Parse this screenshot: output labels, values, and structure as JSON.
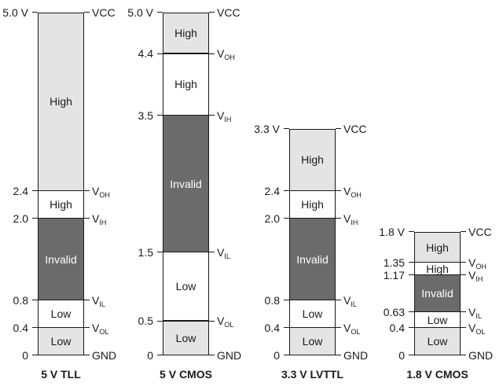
{
  "columns": [
    {
      "title": "5 V TLL",
      "levels": [
        {
          "label": "5.0 V",
          "value": 5.0
        },
        {
          "label": "2.4",
          "value": 2.4
        },
        {
          "label": "2.0",
          "value": 2.0
        },
        {
          "label": "0.8",
          "value": 0.8
        },
        {
          "label": "0.4",
          "value": 0.4
        },
        {
          "label": "0",
          "value": 0
        }
      ],
      "signals": [
        {
          "name": "VCC",
          "sub": "",
          "value": 5.0
        },
        {
          "name": "V",
          "sub": "OH",
          "value": 2.4
        },
        {
          "name": "V",
          "sub": "IH",
          "value": 2.0
        },
        {
          "name": "V",
          "sub": "IL",
          "value": 0.8
        },
        {
          "name": "V",
          "sub": "OL",
          "value": 0.4
        },
        {
          "name": "GND",
          "sub": "",
          "value": 0
        }
      ],
      "zones": [
        {
          "label": "High",
          "from": 2.4,
          "to": 5.0,
          "shade": "light"
        },
        {
          "label": "High",
          "from": 2.0,
          "to": 2.4,
          "shade": "white"
        },
        {
          "label": "Invalid",
          "from": 0.8,
          "to": 2.0,
          "shade": "dark"
        },
        {
          "label": "Low",
          "from": 0.4,
          "to": 0.8,
          "shade": "white"
        },
        {
          "label": "Low",
          "from": 0,
          "to": 0.4,
          "shade": "light"
        }
      ]
    },
    {
      "title": "5 V CMOS",
      "levels": [
        {
          "label": "5.0 V",
          "value": 5.0
        },
        {
          "label": "4.4",
          "value": 4.4
        },
        {
          "label": "3.5",
          "value": 3.5
        },
        {
          "label": "1.5",
          "value": 1.5
        },
        {
          "label": "0.5",
          "value": 0.5
        },
        {
          "label": "0",
          "value": 0
        }
      ],
      "signals": [
        {
          "name": "VCC",
          "sub": "",
          "value": 5.0
        },
        {
          "name": "V",
          "sub": "OH",
          "value": 4.4
        },
        {
          "name": "V",
          "sub": "IH",
          "value": 3.5
        },
        {
          "name": "V",
          "sub": "IL",
          "value": 1.5
        },
        {
          "name": "V",
          "sub": "OL",
          "value": 0.5
        },
        {
          "name": "GND",
          "sub": "",
          "value": 0
        }
      ],
      "zones": [
        {
          "label": "High",
          "from": 4.4,
          "to": 5.0,
          "shade": "light"
        },
        {
          "label": "High",
          "from": 3.5,
          "to": 4.4,
          "shade": "white"
        },
        {
          "label": "Invalid",
          "from": 1.5,
          "to": 3.5,
          "shade": "dark"
        },
        {
          "label": "Low",
          "from": 0.5,
          "to": 1.5,
          "shade": "white"
        },
        {
          "label": "Low",
          "from": 0,
          "to": 0.5,
          "shade": "light"
        }
      ]
    },
    {
      "title": "3.3 V LVTTL",
      "levels": [
        {
          "label": "3.3 V",
          "value": 3.3
        },
        {
          "label": "2.4",
          "value": 2.4
        },
        {
          "label": "2.0",
          "value": 2.0
        },
        {
          "label": "0.8",
          "value": 0.8
        },
        {
          "label": "0.4",
          "value": 0.4
        },
        {
          "label": "0",
          "value": 0
        }
      ],
      "signals": [
        {
          "name": "VCC",
          "sub": "",
          "value": 3.3
        },
        {
          "name": "V",
          "sub": "OH",
          "value": 2.4
        },
        {
          "name": "V",
          "sub": "IH",
          "value": 2.0
        },
        {
          "name": "V",
          "sub": "IL",
          "value": 0.8
        },
        {
          "name": "V",
          "sub": "OL",
          "value": 0.4
        },
        {
          "name": "GND",
          "sub": "",
          "value": 0
        }
      ],
      "zones": [
        {
          "label": "High",
          "from": 2.4,
          "to": 3.3,
          "shade": "light"
        },
        {
          "label": "High",
          "from": 2.0,
          "to": 2.4,
          "shade": "white"
        },
        {
          "label": "Invalid",
          "from": 0.8,
          "to": 2.0,
          "shade": "dark"
        },
        {
          "label": "Low",
          "from": 0.4,
          "to": 0.8,
          "shade": "white"
        },
        {
          "label": "Low",
          "from": 0,
          "to": 0.4,
          "shade": "light"
        }
      ]
    },
    {
      "title": "1.8 V CMOS",
      "levels": [
        {
          "label": "1.8 V",
          "value": 1.8
        },
        {
          "label": "1.35",
          "value": 1.35
        },
        {
          "label": "1.17",
          "value": 1.17
        },
        {
          "label": "0.63",
          "value": 0.63
        },
        {
          "label": "0.4",
          "value": 0.4
        },
        {
          "label": "0",
          "value": 0
        }
      ],
      "signals": [
        {
          "name": "VCC",
          "sub": "",
          "value": 1.8
        },
        {
          "name": "V",
          "sub": "OH",
          "value": 1.35
        },
        {
          "name": "V",
          "sub": "IH",
          "value": 1.17
        },
        {
          "name": "V",
          "sub": "IL",
          "value": 0.63
        },
        {
          "name": "V",
          "sub": "OL",
          "value": 0.4
        },
        {
          "name": "GND",
          "sub": "",
          "value": 0
        }
      ],
      "zones": [
        {
          "label": "High",
          "from": 1.35,
          "to": 1.8,
          "shade": "light"
        },
        {
          "label": "High",
          "from": 1.17,
          "to": 1.35,
          "shade": "white"
        },
        {
          "label": "Invalid",
          "from": 0.63,
          "to": 1.17,
          "shade": "dark"
        },
        {
          "label": "Low",
          "from": 0.4,
          "to": 0.63,
          "shade": "white"
        },
        {
          "label": "Low",
          "from": 0,
          "to": 0.4,
          "shade": "light"
        }
      ]
    }
  ],
  "colors": {
    "light": "#e4e4e4",
    "white": "#ffffff",
    "dark": "#6b6b6b",
    "line": "#1a1a1a"
  }
}
